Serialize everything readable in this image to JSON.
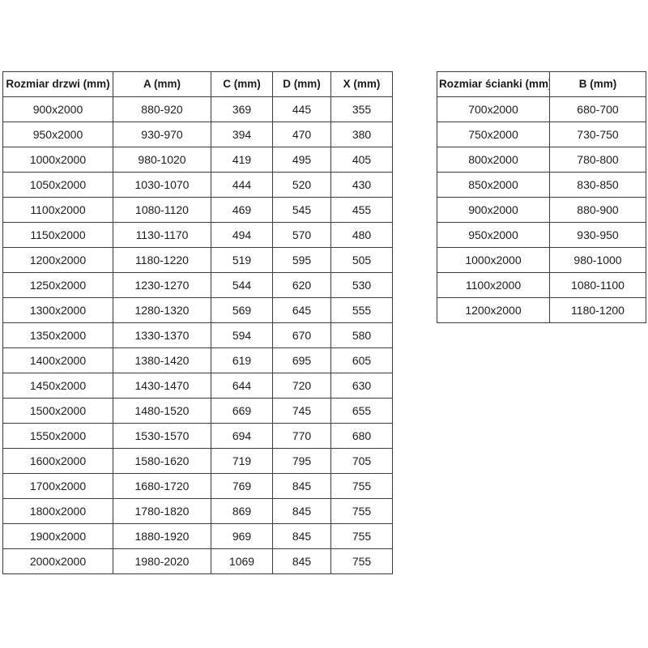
{
  "colors": {
    "background": "#ffffff",
    "text": "#1b1b1b",
    "table_border": "#3c3c3c"
  },
  "door_table": {
    "headers": [
      "Rozmiar drzwi (mm)",
      "A (mm)",
      "C (mm)",
      "D (mm)",
      "X (mm)"
    ],
    "rows": [
      [
        "900x2000",
        "880-920",
        "369",
        "445",
        "355"
      ],
      [
        "950x2000",
        "930-970",
        "394",
        "470",
        "380"
      ],
      [
        "1000x2000",
        "980-1020",
        "419",
        "495",
        "405"
      ],
      [
        "1050x2000",
        "1030-1070",
        "444",
        "520",
        "430"
      ],
      [
        "1100x2000",
        "1080-1120",
        "469",
        "545",
        "455"
      ],
      [
        "1150x2000",
        "1130-1170",
        "494",
        "570",
        "480"
      ],
      [
        "1200x2000",
        "1180-1220",
        "519",
        "595",
        "505"
      ],
      [
        "1250x2000",
        "1230-1270",
        "544",
        "620",
        "530"
      ],
      [
        "1300x2000",
        "1280-1320",
        "569",
        "645",
        "555"
      ],
      [
        "1350x2000",
        "1330-1370",
        "594",
        "670",
        "580"
      ],
      [
        "1400x2000",
        "1380-1420",
        "619",
        "695",
        "605"
      ],
      [
        "1450x2000",
        "1430-1470",
        "644",
        "720",
        "630"
      ],
      [
        "1500x2000",
        "1480-1520",
        "669",
        "745",
        "655"
      ],
      [
        "1550x2000",
        "1530-1570",
        "694",
        "770",
        "680"
      ],
      [
        "1600x2000",
        "1580-1620",
        "719",
        "795",
        "705"
      ],
      [
        "1700x2000",
        "1680-1720",
        "769",
        "845",
        "755"
      ],
      [
        "1800x2000",
        "1780-1820",
        "869",
        "845",
        "755"
      ],
      [
        "1900x2000",
        "1880-1920",
        "969",
        "845",
        "755"
      ],
      [
        "2000x2000",
        "1980-2020",
        "1069",
        "845",
        "755"
      ]
    ]
  },
  "wall_table": {
    "headers": [
      "Rozmiar ścianki (mm)",
      "B (mm)"
    ],
    "rows": [
      [
        "700x2000",
        "680-700"
      ],
      [
        "750x2000",
        "730-750"
      ],
      [
        "800x2000",
        "780-800"
      ],
      [
        "850x2000",
        "830-850"
      ],
      [
        "900x2000",
        "880-900"
      ],
      [
        "950x2000",
        "930-950"
      ],
      [
        "1000x2000",
        "980-1000"
      ],
      [
        "1100x2000",
        "1080-1100"
      ],
      [
        "1200x2000",
        "1180-1200"
      ]
    ]
  }
}
